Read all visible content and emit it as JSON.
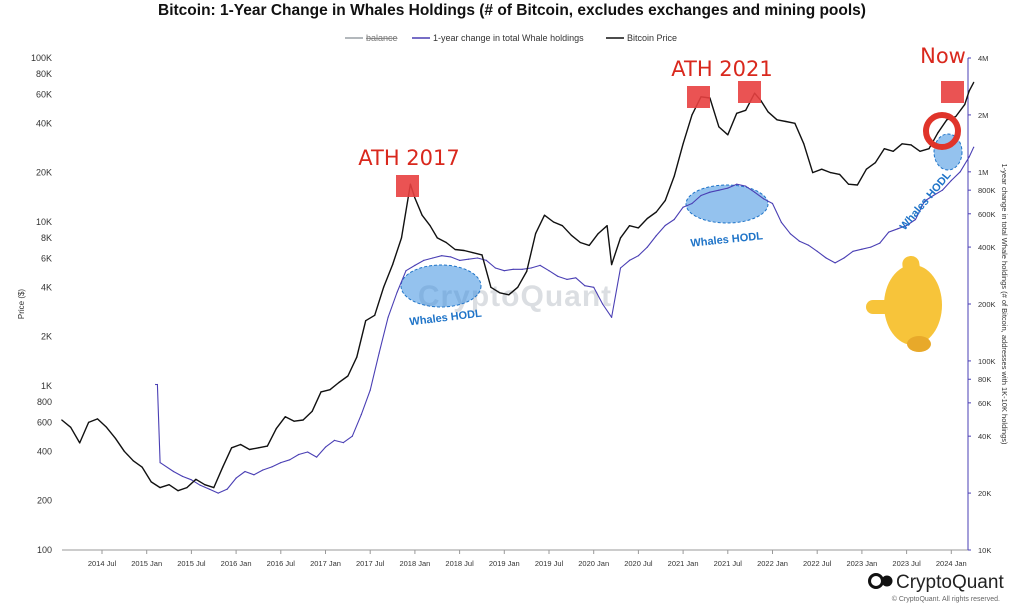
{
  "chart_data": {
    "type": "line",
    "title": "Bitcoin: 1-Year Change in Whales Holdings (# of Bitcoin, excludes exchanges and mining pools)",
    "legend": {
      "placement": "top-center",
      "items": [
        {
          "label": "balance",
          "color": "#9aa0a6",
          "struck": true
        },
        {
          "label": "1-year change in total Whale holdings",
          "color": "#4a3fb4"
        },
        {
          "label": "Bitcoin Price",
          "color": "#111111"
        }
      ]
    },
    "x_axis": {
      "ticks": [
        "2014 Jul",
        "2015 Jan",
        "2015 Jul",
        "2016 Jan",
        "2016 Jul",
        "2017 Jan",
        "2017 Jul",
        "2018 Jan",
        "2018 Jul",
        "2019 Jan",
        "2019 Jul",
        "2020 Jan",
        "2020 Jul",
        "2021 Jan",
        "2021 Jul",
        "2022 Jan",
        "2022 Jul",
        "2023 Jan",
        "2023 Jul",
        "2024 Jan"
      ],
      "range": [
        2014.0,
        2024.5
      ]
    },
    "y_left": {
      "label": "Price ($)",
      "scale": "log",
      "range": [
        100,
        100000
      ],
      "tick_values": [
        100,
        200,
        400,
        600,
        800,
        1000,
        2000,
        4000,
        6000,
        8000,
        10000,
        20000,
        40000,
        60000,
        80000,
        100000
      ],
      "tick_labels": [
        "100",
        "200",
        "400",
        "600",
        "800",
        "1K",
        "2K",
        "4K",
        "6K",
        "8K",
        "10K",
        "20K",
        "40K",
        "60K",
        "80K",
        "100K"
      ]
    },
    "y_right": {
      "label": "1-year change in total Whale holdings (# of Bitcoin, addresses with 1K-10K holdings)",
      "scale": "log",
      "range": [
        10000,
        4000000
      ],
      "tick_values": [
        10000,
        20000,
        40000,
        60000,
        80000,
        100000,
        200000,
        400000,
        600000,
        800000,
        1000000,
        2000000,
        4000000
      ],
      "tick_labels": [
        "10K",
        "20K",
        "40K",
        "60K",
        "80K",
        "100K",
        "200K",
        "400K",
        "600K",
        "800K",
        "1M",
        "2M",
        "4M"
      ]
    },
    "series": [
      {
        "name": "Bitcoin Price",
        "axis": "left",
        "color": "#111111",
        "x": [
          2014.05,
          2014.15,
          2014.25,
          2014.35,
          2014.45,
          2014.55,
          2014.65,
          2014.75,
          2014.85,
          2014.95,
          2015.05,
          2015.15,
          2015.25,
          2015.35,
          2015.45,
          2015.55,
          2015.65,
          2015.75,
          2015.85,
          2015.95,
          2016.05,
          2016.15,
          2016.25,
          2016.35,
          2016.45,
          2016.55,
          2016.65,
          2016.75,
          2016.85,
          2016.95,
          2017.05,
          2017.15,
          2017.25,
          2017.35,
          2017.45,
          2017.55,
          2017.65,
          2017.75,
          2017.85,
          2017.95,
          2018.0,
          2018.08,
          2018.17,
          2018.25,
          2018.35,
          2018.45,
          2018.55,
          2018.65,
          2018.75,
          2018.85,
          2018.95,
          2019.05,
          2019.15,
          2019.25,
          2019.35,
          2019.45,
          2019.55,
          2019.65,
          2019.75,
          2019.85,
          2019.95,
          2020.05,
          2020.15,
          2020.2,
          2020.3,
          2020.4,
          2020.5,
          2020.6,
          2020.7,
          2020.8,
          2020.9,
          2021.0,
          2021.1,
          2021.2,
          2021.3,
          2021.4,
          2021.5,
          2021.6,
          2021.7,
          2021.8,
          2021.87,
          2021.95,
          2022.05,
          2022.15,
          2022.25,
          2022.35,
          2022.45,
          2022.55,
          2022.65,
          2022.75,
          2022.85,
          2022.95,
          2023.05,
          2023.15,
          2023.25,
          2023.35,
          2023.45,
          2023.55,
          2023.65,
          2023.75,
          2023.85,
          2023.95,
          2024.05,
          2024.15,
          2024.2,
          2024.25
        ],
        "values": [
          620,
          560,
          450,
          600,
          630,
          560,
          480,
          400,
          350,
          320,
          260,
          240,
          250,
          230,
          240,
          270,
          250,
          240,
          320,
          420,
          440,
          410,
          420,
          430,
          550,
          650,
          610,
          620,
          700,
          920,
          950,
          1050,
          1150,
          1500,
          2500,
          2700,
          4000,
          5500,
          8000,
          17000,
          14000,
          11000,
          9500,
          8000,
          7500,
          6800,
          6700,
          6500,
          6300,
          4000,
          3700,
          3600,
          4000,
          5000,
          8500,
          11000,
          10000,
          9500,
          8300,
          7500,
          7200,
          8500,
          9500,
          5500,
          8000,
          9500,
          9200,
          10500,
          11500,
          13500,
          19000,
          30000,
          45000,
          58000,
          57000,
          38000,
          34000,
          46000,
          48000,
          61000,
          55000,
          47000,
          42000,
          41000,
          40000,
          30000,
          20000,
          21000,
          20000,
          19500,
          17000,
          16800,
          21000,
          23000,
          28000,
          27000,
          30000,
          29500,
          27000,
          28000,
          35000,
          42000,
          44000,
          52000,
          63000,
          71000
        ]
      },
      {
        "name": "1-year change in total Whale holdings",
        "axis": "right",
        "color": "#4a3fb4",
        "x": [
          2015.1,
          2015.12,
          2015.15,
          2015.3,
          2015.4,
          2015.5,
          2015.6,
          2015.7,
          2015.8,
          2015.9,
          2016.0,
          2016.1,
          2016.2,
          2016.3,
          2016.4,
          2016.5,
          2016.6,
          2016.7,
          2016.8,
          2016.9,
          2017.0,
          2017.1,
          2017.2,
          2017.3,
          2017.4,
          2017.5,
          2017.6,
          2017.7,
          2017.8,
          2017.9,
          2018.0,
          2018.1,
          2018.2,
          2018.3,
          2018.4,
          2018.5,
          2018.6,
          2018.7,
          2018.8,
          2018.9,
          2019.0,
          2019.1,
          2019.2,
          2019.3,
          2019.4,
          2019.5,
          2019.6,
          2019.7,
          2019.8,
          2019.9,
          2020.0,
          2020.1,
          2020.2,
          2020.3,
          2020.4,
          2020.5,
          2020.6,
          2020.7,
          2020.8,
          2020.9,
          2021.0,
          2021.1,
          2021.2,
          2021.3,
          2021.4,
          2021.5,
          2021.6,
          2021.7,
          2021.8,
          2021.9,
          2022.0,
          2022.1,
          2022.2,
          2022.3,
          2022.4,
          2022.5,
          2022.6,
          2022.7,
          2022.8,
          2022.9,
          2023.0,
          2023.1,
          2023.2,
          2023.3,
          2023.4,
          2023.5,
          2023.6,
          2023.7,
          2023.8,
          2023.9,
          2024.0,
          2024.1,
          2024.2,
          2024.25
        ],
        "values": [
          75000,
          75000,
          29000,
          26000,
          24500,
          23500,
          22000,
          21000,
          20000,
          21000,
          24000,
          26000,
          25000,
          26500,
          27500,
          29000,
          30000,
          32000,
          33000,
          31000,
          35000,
          38000,
          37000,
          40000,
          52000,
          70000,
          110000,
          170000,
          230000,
          300000,
          320000,
          340000,
          350000,
          360000,
          355000,
          340000,
          345000,
          350000,
          340000,
          310000,
          300000,
          305000,
          305000,
          310000,
          320000,
          300000,
          280000,
          270000,
          275000,
          250000,
          245000,
          200000,
          170000,
          310000,
          340000,
          360000,
          400000,
          460000,
          520000,
          560000,
          650000,
          680000,
          750000,
          780000,
          800000,
          820000,
          860000,
          840000,
          780000,
          720000,
          680000,
          540000,
          470000,
          430000,
          410000,
          380000,
          350000,
          330000,
          350000,
          380000,
          390000,
          400000,
          420000,
          480000,
          500000,
          520000,
          560000,
          700000,
          750000,
          800000,
          900000,
          1000000,
          1200000,
          1350000
        ]
      }
    ],
    "annotations": {
      "ath_2017": "ATH 2017",
      "ath_2021": "ATH 2021",
      "now": "Now",
      "hodl_1": "Whales HODL",
      "hodl_2": "Whales HODL",
      "hodl_3": "Whales HODL"
    },
    "watermark": "CryptoQuant",
    "brand": "CryptoQuant",
    "copyright": "© CryptoQuant. All rights reserved."
  },
  "pointer_emoji": "👈"
}
